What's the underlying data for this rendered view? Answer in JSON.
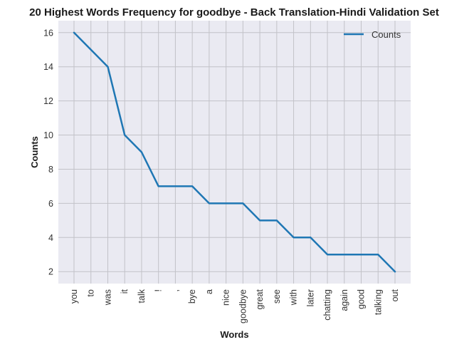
{
  "chart_data": {
    "type": "line",
    "title": "20 Highest Words Frequency for goodbye - Back Translation-Hindi Validation Set",
    "xlabel": "Words",
    "ylabel": "Counts",
    "categories": [
      "you",
      "to",
      "was",
      "it",
      "talk",
      "!",
      ",",
      "bye",
      "a",
      "nice",
      "goodbye",
      "great",
      "see",
      "with",
      "later",
      "chatting",
      "again",
      "good",
      "talking",
      "out"
    ],
    "series": [
      {
        "name": "Counts",
        "values": [
          16,
          15,
          14,
          10,
          9,
          7,
          7,
          7,
          6,
          6,
          6,
          5,
          5,
          4,
          4,
          3,
          3,
          3,
          3,
          2
        ]
      }
    ],
    "ylim": [
      1.3,
      16.7
    ],
    "yticks": [
      2,
      4,
      6,
      8,
      10,
      12,
      14,
      16
    ],
    "grid": true,
    "legend_position": "top-right",
    "colors": {
      "background": "#eaeaf2",
      "grid": "#c2c2c8",
      "line": "#1f77b4"
    }
  }
}
